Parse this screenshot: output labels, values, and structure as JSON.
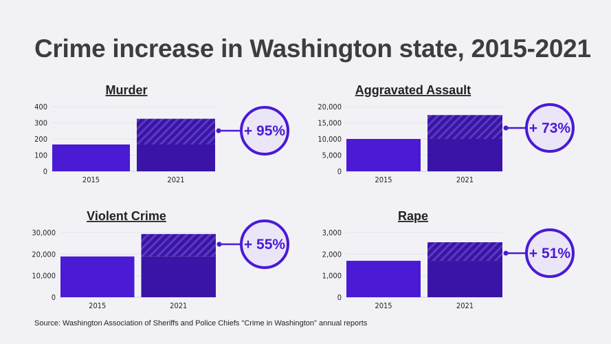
{
  "title": "Crime increase in Washington state, 2015-2021",
  "source": "Source: Washington Association of Sheriffs and Police Chiefs \"Crime in Washington\" annual reports",
  "colors": {
    "bar_2015": "#4a1ad4",
    "bar_2021": "#3a14a6",
    "hatch": "#5a3bc0",
    "circle_fill": "#ebe6f7",
    "accent": "#4a1ad4",
    "background": "#f2f2f6"
  },
  "chart_data": [
    {
      "type": "bar",
      "title": "Murder",
      "categories": [
        "2015",
        "2021"
      ],
      "values": [
        166,
        325
      ],
      "ylim": [
        0,
        400
      ],
      "yticks": [
        "0",
        "100",
        "200",
        "300",
        "400"
      ],
      "ytick_values": [
        0,
        100,
        200,
        300,
        400
      ],
      "change_label": "+ 95%",
      "grid": true
    },
    {
      "type": "bar",
      "title": "Aggravated Assault",
      "categories": [
        "2015",
        "2021"
      ],
      "values": [
        10000,
        17400
      ],
      "ylim": [
        0,
        20000
      ],
      "yticks": [
        "0",
        "5,000",
        "10,000",
        "15,000",
        "20,000"
      ],
      "ytick_values": [
        0,
        5000,
        10000,
        15000,
        20000
      ],
      "change_label": "+ 73%",
      "grid": true
    },
    {
      "type": "bar",
      "title": "Violent Crime",
      "categories": [
        "2015",
        "2021"
      ],
      "values": [
        18900,
        29300
      ],
      "ylim": [
        0,
        30000
      ],
      "yticks": [
        "0",
        "10,000",
        "20,000",
        "30,000"
      ],
      "ytick_values": [
        0,
        10000,
        20000,
        30000
      ],
      "change_label": "+ 55%",
      "grid": true
    },
    {
      "type": "bar",
      "title": "Rape",
      "categories": [
        "2015",
        "2021"
      ],
      "values": [
        1690,
        2550
      ],
      "ylim": [
        0,
        3000
      ],
      "yticks": [
        "0",
        "1,000",
        "2,000",
        "3,000"
      ],
      "ytick_values": [
        0,
        1000,
        2000,
        3000
      ],
      "change_label": "+ 51%",
      "grid": true
    }
  ]
}
